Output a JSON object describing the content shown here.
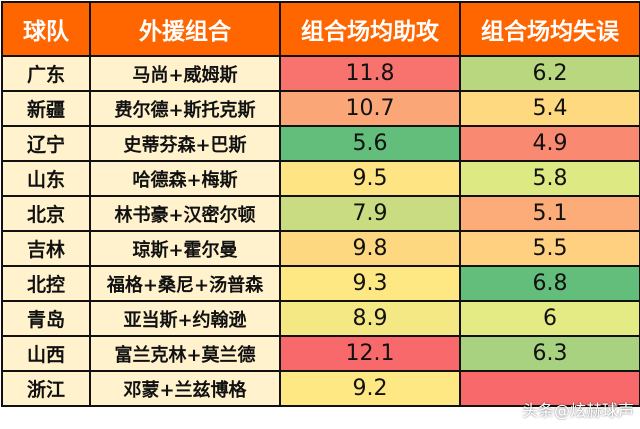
{
  "headers": [
    "球队",
    "外援组合",
    "组合场均助攻",
    "组合场均失误"
  ],
  "rows": [
    {
      "team": "广东",
      "combo": "马尚+威姆斯",
      "assists": "11.8",
      "turnovers": "6.2"
    },
    {
      "team": "新疆",
      "combo": "费尔德+斯托克斯",
      "assists": "10.7",
      "turnovers": "5.4"
    },
    {
      "team": "辽宁",
      "combo": "史蒂芬森+巴斯",
      "assists": "5.6",
      "turnovers": "4.9"
    },
    {
      "team": "山东",
      "combo": "哈德森+梅斯",
      "assists": "9.5",
      "turnovers": "5.8"
    },
    {
      "team": "北京",
      "combo": "林书豪+汉密尔顿",
      "assists": "7.9",
      "turnovers": "5.1"
    },
    {
      "team": "吉林",
      "combo": "琼斯+霍尔曼",
      "assists": "9.8",
      "turnovers": "5.5"
    },
    {
      "team": "北控",
      "combo": "福格+桑尼+汤普森",
      "assists": "9.3",
      "turnovers": "6.8"
    },
    {
      "team": "青岛",
      "combo": "亚当斯+约翰逊",
      "assists": "8.9",
      "turnovers": "6"
    },
    {
      "team": "山西",
      "combo": "富兰克林+莫兰德",
      "assists": "12.1",
      "turnovers": "6.3"
    },
    {
      "team": "浙江",
      "combo": "邓蒙+兰兹博格",
      "assists": "9.2",
      "turnovers": ""
    }
  ],
  "cell_colors": {
    "assists": [
      "#f8736d",
      "#fba677",
      "#63be7b",
      "#fee483",
      "#c9dc81",
      "#fed880",
      "#fee884",
      "#f3e884",
      "#f8696b",
      "#fee883"
    ],
    "turnovers": [
      "#b8d77f",
      "#fed980",
      "#f98a71",
      "#ddea84",
      "#fbac79",
      "#fed07f",
      "#63be7b",
      "#e4ea84",
      "#a8d27f",
      "#f8696b"
    ]
  },
  "header_color": "#ff6600",
  "label_cell_color": "#fff2cc",
  "watermark": "头条@炫赫球声"
}
